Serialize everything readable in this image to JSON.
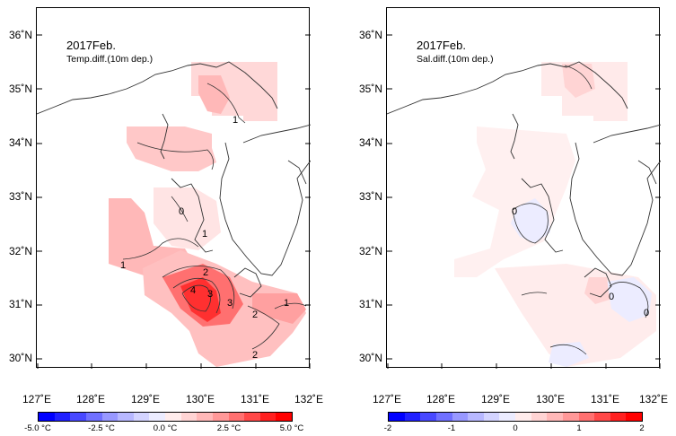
{
  "panels": [
    {
      "title": "2017Feb.",
      "subtitle": "Temp.diff.(10m dep.)",
      "lat_labels": [
        "36˚N",
        "35˚N",
        "34˚N",
        "33˚N",
        "32˚N",
        "31˚N",
        "30˚N"
      ],
      "lon_labels": [
        "127˚E",
        "128˚E",
        "129˚E",
        "130˚E",
        "131˚E",
        "132˚E"
      ],
      "contour_labels": [
        "1",
        "0",
        "1",
        "1",
        "2",
        "3",
        "4",
        "3",
        "2",
        "2",
        "1"
      ],
      "colorbar_labels": [
        "-5.0 °C",
        "-2.5 °C",
        "0.0 °C",
        "2.5 °C",
        "5.0 °C"
      ]
    },
    {
      "title": "2017Feb.",
      "subtitle": "Sal.diff.(10m dep.)",
      "lat_labels": [
        "36˚N",
        "35˚N",
        "34˚N",
        "33˚N",
        "32˚N",
        "31˚N",
        "30˚N"
      ],
      "lon_labels": [
        "127˚E",
        "128˚E",
        "129˚E",
        "130˚E",
        "131˚E",
        "132˚E"
      ],
      "contour_labels": [
        "0",
        "0",
        "0"
      ],
      "colorbar_labels": [
        "-2",
        "-1",
        "0",
        "1",
        "2"
      ]
    }
  ],
  "colorbar_colors": [
    "#0000ff",
    "#2020ff",
    "#4848ff",
    "#7070ff",
    "#9898ff",
    "#b8b8ff",
    "#d4d4ff",
    "#ececff",
    "#ffecec",
    "#ffd4d4",
    "#ffb8b8",
    "#ff9898",
    "#ff7070",
    "#ff4848",
    "#ff2020",
    "#ff0000"
  ]
}
